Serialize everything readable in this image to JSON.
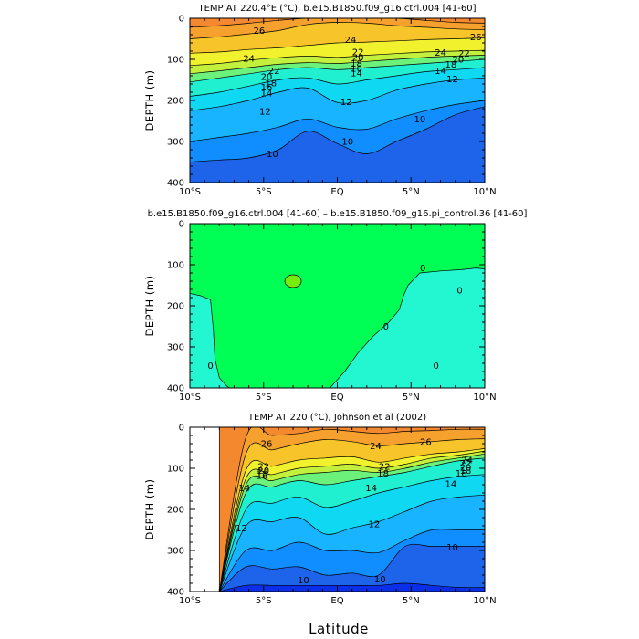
{
  "figure": {
    "xlabel": "Latitude"
  },
  "chart_data": [
    {
      "type": "heatmap",
      "title": "TEMP AT 220.4°E (°C), b.e15.B1850.f09_g16.ctrl.004 [41-60]",
      "ylabel": "DEPTH (m)",
      "xlim": [
        -10,
        10
      ],
      "ylim": [
        400,
        0
      ],
      "xticks": [
        -10,
        -5,
        0,
        5,
        10
      ],
      "xticklabels": [
        "10°S",
        "5°S",
        "EQ",
        "5°N",
        "10°N"
      ],
      "yticks": [
        0,
        100,
        200,
        300,
        400
      ],
      "yticklabels": [
        "0",
        "100",
        "200",
        "300",
        "400"
      ],
      "fill_colors": [
        "#0b2fe8",
        "#1d64ea",
        "#108dff",
        "#19b4ff",
        "#0fd8f2",
        "#20f0d0",
        "#6cf27b",
        "#c3f03c",
        "#f2f12d",
        "#f7c52a",
        "#f6a12d",
        "#f4882e",
        "#ef5a2a"
      ],
      "layers": [
        {
          "level": 9,
          "color_index": 1,
          "depth": [
            400,
            400,
            400,
            400,
            400,
            400,
            400,
            400,
            400,
            400,
            400
          ]
        },
        {
          "level": 10,
          "color_index": 2,
          "depth": [
            350,
            345,
            340,
            320,
            275,
            305,
            330,
            300,
            270,
            235,
            215
          ]
        },
        {
          "level": 11,
          "color_index": 3,
          "depth": [
            300,
            290,
            280,
            265,
            245,
            265,
            270,
            245,
            225,
            210,
            200
          ]
        },
        {
          "level": 12,
          "color_index": 4,
          "depth": [
            225,
            215,
            200,
            180,
            170,
            205,
            200,
            175,
            160,
            150,
            145
          ]
        },
        {
          "level": 14,
          "color_index": 5,
          "depth": [
            190,
            180,
            165,
            150,
            145,
            160,
            150,
            140,
            130,
            125,
            120
          ]
        },
        {
          "level": 18,
          "color_index": 6,
          "depth": [
            155,
            145,
            135,
            125,
            120,
            125,
            120,
            115,
            110,
            105,
            100
          ]
        },
        {
          "level": 20,
          "color_index": 7,
          "depth": [
            135,
            128,
            120,
            112,
            108,
            110,
            105,
            100,
            95,
            92,
            90
          ]
        },
        {
          "level": 22,
          "color_index": 8,
          "depth": [
            115,
            110,
            102,
            96,
            92,
            95,
            90,
            86,
            82,
            80,
            78
          ]
        },
        {
          "level": 24,
          "color_index": 9,
          "depth": [
            85,
            82,
            76,
            72,
            66,
            60,
            58,
            55,
            52,
            50,
            48
          ]
        },
        {
          "level": 26,
          "color_index": 10,
          "depth": [
            50,
            45,
            38,
            30,
            15,
            10,
            12,
            18,
            22,
            26,
            28
          ]
        },
        {
          "level": 27,
          "color_index": 11,
          "depth": [
            22,
            18,
            12,
            5,
            0,
            0,
            0,
            0,
            5,
            10,
            12
          ]
        }
      ],
      "contour_labels": [
        {
          "text": "26",
          "lat": -5.3,
          "depth": 30
        },
        {
          "text": "24",
          "lat": 0.9,
          "depth": 52
        },
        {
          "text": "26",
          "lat": 9.4,
          "depth": 45
        },
        {
          "text": "24",
          "lat": -6.0,
          "depth": 98
        },
        {
          "text": "22",
          "lat": -4.3,
          "depth": 128
        },
        {
          "text": "20",
          "lat": -4.8,
          "depth": 142
        },
        {
          "text": "18",
          "lat": -4.5,
          "depth": 158
        },
        {
          "text": "16",
          "lat": -4.8,
          "depth": 168
        },
        {
          "text": "14",
          "lat": -4.8,
          "depth": 182
        },
        {
          "text": "12",
          "lat": -4.9,
          "depth": 227
        },
        {
          "text": "12",
          "lat": 0.6,
          "depth": 203
        },
        {
          "text": "12",
          "lat": 7.8,
          "depth": 148
        },
        {
          "text": "10",
          "lat": -4.4,
          "depth": 330
        },
        {
          "text": "10",
          "lat": 0.7,
          "depth": 300
        },
        {
          "text": "10",
          "lat": 5.6,
          "depth": 245
        },
        {
          "text": "22",
          "lat": 1.4,
          "depth": 82
        },
        {
          "text": "20",
          "lat": 1.4,
          "depth": 96
        },
        {
          "text": "18",
          "lat": 1.3,
          "depth": 110
        },
        {
          "text": "16",
          "lat": 1.3,
          "depth": 122
        },
        {
          "text": "14",
          "lat": 1.3,
          "depth": 133
        },
        {
          "text": "24",
          "lat": 7.0,
          "depth": 83
        },
        {
          "text": "22",
          "lat": 8.6,
          "depth": 85
        },
        {
          "text": "20",
          "lat": 8.2,
          "depth": 100
        },
        {
          "text": "18",
          "lat": 7.7,
          "depth": 112
        },
        {
          "text": "14",
          "lat": 7.0,
          "depth": 128
        }
      ]
    },
    {
      "type": "heatmap",
      "title": "b.e15.B1850.f09_g16.ctrl.004 [41-60] – b.e15.B1850.f09_g16.pi_control.36 [41-60]",
      "ylabel": "DEPTH (m)",
      "xlim": [
        -10,
        10
      ],
      "ylim": [
        400,
        0
      ],
      "xticks": [
        -10,
        -5,
        0,
        5,
        10
      ],
      "xticklabels": [
        "10°S",
        "5°S",
        "EQ",
        "5°N",
        "10°N"
      ],
      "yticks": [
        0,
        100,
        200,
        300,
        400
      ],
      "yticklabels": [
        "0",
        "100",
        "200",
        "300",
        "400"
      ],
      "colors": {
        "background": "#00ff55",
        "negative": "#22f7d2",
        "positive": "#78ec0f"
      },
      "contour_labels": [
        {
          "text": "0",
          "lat": 8.3,
          "depth": 162
        },
        {
          "text": "0",
          "lat": 3.3,
          "depth": 250
        },
        {
          "text": "0",
          "lat": 6.7,
          "depth": 345
        },
        {
          "text": "0",
          "lat": -8.6,
          "depth": 345
        },
        {
          "text": "0",
          "lat": 5.8,
          "depth": 108
        }
      ]
    },
    {
      "type": "heatmap",
      "title": "TEMP AT 220 (°C), Johnson et al (2002)",
      "ylabel": "DEPTH (m)",
      "xlim": [
        -10,
        10
      ],
      "ylim": [
        400,
        0
      ],
      "data_xmin": -8,
      "xticks": [
        -10,
        -5,
        0,
        5,
        10
      ],
      "xticklabels": [
        "10°S",
        "5°S",
        "EQ",
        "5°N",
        "10°N"
      ],
      "yticks": [
        0,
        100,
        200,
        300,
        400
      ],
      "yticklabels": [
        "0",
        "100",
        "200",
        "300",
        "400"
      ],
      "fill_colors": [
        "#0b2fe8",
        "#1d64ea",
        "#108dff",
        "#19b4ff",
        "#0fd8f2",
        "#20f0d0",
        "#6cf27b",
        "#c3f03c",
        "#f2f12d",
        "#f7c52a",
        "#f6a12d",
        "#f4882e",
        "#ef5a2a"
      ],
      "layers": [
        {
          "level": 9,
          "color_index": 1,
          "depth": [
            400,
            385,
            385,
            385,
            385,
            385,
            385,
            380,
            385,
            390,
            390
          ]
        },
        {
          "level": 10,
          "color_index": 2,
          "depth": [
            400,
            340,
            345,
            340,
            360,
            355,
            360,
            290,
            290,
            290,
            290
          ]
        },
        {
          "level": 11,
          "color_index": 3,
          "depth": [
            400,
            300,
            300,
            280,
            300,
            300,
            305,
            275,
            250,
            250,
            250
          ]
        },
        {
          "level": 12,
          "color_index": 4,
          "depth": [
            400,
            240,
            230,
            220,
            260,
            245,
            230,
            205,
            180,
            170,
            165
          ]
        },
        {
          "level": 13,
          "color_index": 5,
          "depth": [
            400,
            200,
            185,
            170,
            195,
            180,
            160,
            145,
            130,
            120,
            115
          ]
        },
        {
          "level": 14,
          "color_index": 6,
          "depth": [
            400,
            160,
            145,
            130,
            140,
            130,
            120,
            110,
            95,
            82,
            75
          ]
        },
        {
          "level": 18,
          "color_index": 7,
          "depth": [
            400,
            140,
            130,
            115,
            110,
            105,
            110,
            100,
            85,
            75,
            65
          ]
        },
        {
          "level": 20,
          "color_index": 8,
          "depth": [
            400,
            125,
            115,
            100,
            95,
            90,
            100,
            90,
            75,
            68,
            58
          ]
        },
        {
          "level": 22,
          "color_index": 9,
          "depth": [
            400,
            105,
            95,
            80,
            75,
            72,
            85,
            75,
            65,
            60,
            52
          ]
        },
        {
          "level": 24,
          "color_index": 10,
          "depth": [
            400,
            65,
            55,
            40,
            30,
            35,
            45,
            40,
            35,
            30,
            28
          ]
        },
        {
          "level": 26,
          "color_index": 11,
          "depth": [
            400,
            25,
            20,
            15,
            5,
            10,
            15,
            10,
            8,
            5,
            5
          ]
        }
      ],
      "contour_labels": [
        {
          "text": "26",
          "lat": -4.8,
          "depth": 40
        },
        {
          "text": "24",
          "lat": 2.6,
          "depth": 45
        },
        {
          "text": "26",
          "lat": 6.0,
          "depth": 35
        },
        {
          "text": "22",
          "lat": -5.0,
          "depth": 95
        },
        {
          "text": "20",
          "lat": -5.0,
          "depth": 105
        },
        {
          "text": "18",
          "lat": -5.1,
          "depth": 113
        },
        {
          "text": "16",
          "lat": -5.1,
          "depth": 118
        },
        {
          "text": "14",
          "lat": -6.3,
          "depth": 148
        },
        {
          "text": "22",
          "lat": 3.2,
          "depth": 96
        },
        {
          "text": "18",
          "lat": 3.1,
          "depth": 112
        },
        {
          "text": "14",
          "lat": 2.3,
          "depth": 148
        },
        {
          "text": "24",
          "lat": 8.8,
          "depth": 80
        },
        {
          "text": "22",
          "lat": 8.7,
          "depth": 88
        },
        {
          "text": "20",
          "lat": 8.7,
          "depth": 98
        },
        {
          "text": "18",
          "lat": 8.7,
          "depth": 105
        },
        {
          "text": "16",
          "lat": 8.4,
          "depth": 112
        },
        {
          "text": "14",
          "lat": 7.7,
          "depth": 138
        },
        {
          "text": "12",
          "lat": -6.5,
          "depth": 245
        },
        {
          "text": "12",
          "lat": 2.5,
          "depth": 235
        },
        {
          "text": "10",
          "lat": -2.3,
          "depth": 372
        },
        {
          "text": "10",
          "lat": 2.9,
          "depth": 370
        },
        {
          "text": "10",
          "lat": 7.8,
          "depth": 292
        }
      ]
    }
  ]
}
